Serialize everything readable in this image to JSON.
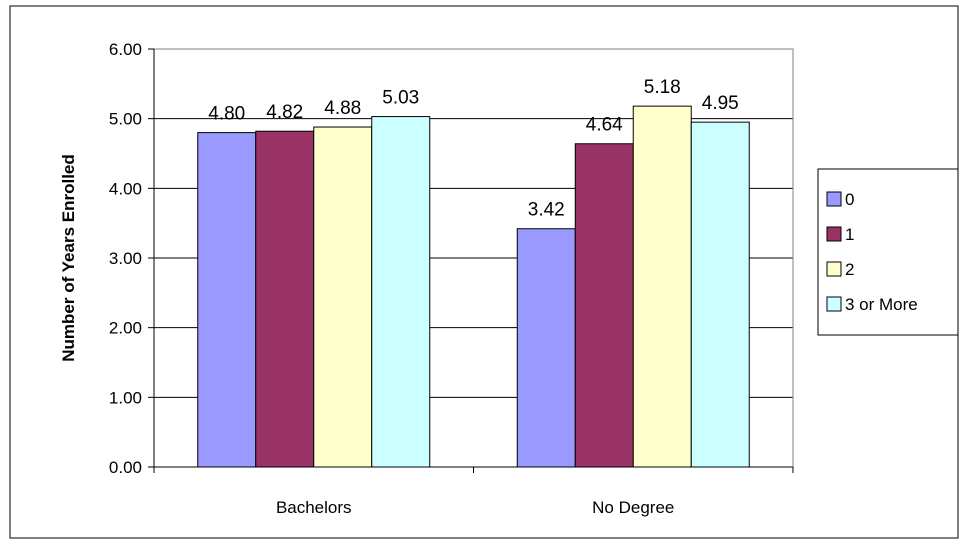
{
  "chart_data": {
    "type": "bar",
    "title": "",
    "xlabel": "",
    "ylabel": "Number of Years Enrolled",
    "categories": [
      "Bachelors",
      "No Degree"
    ],
    "ylim": [
      0,
      6
    ],
    "yticks": [
      "0.00",
      "1.00",
      "2.00",
      "3.00",
      "4.00",
      "5.00",
      "6.00"
    ],
    "grid": true,
    "legend_position": "right",
    "series": [
      {
        "name": "0",
        "values": [
          4.8,
          3.42
        ],
        "labels": [
          "4.80",
          "3.42"
        ],
        "color": "#9999ff"
      },
      {
        "name": "1",
        "values": [
          4.82,
          4.64
        ],
        "labels": [
          "4.82",
          "4.64"
        ],
        "color": "#993366"
      },
      {
        "name": "2",
        "values": [
          4.88,
          5.18
        ],
        "labels": [
          "4.88",
          "5.18"
        ],
        "color": "#ffffcc"
      },
      {
        "name": "3 or More",
        "values": [
          5.03,
          4.95
        ],
        "labels": [
          "5.03",
          "4.95"
        ],
        "color": "#ccffff"
      }
    ]
  }
}
